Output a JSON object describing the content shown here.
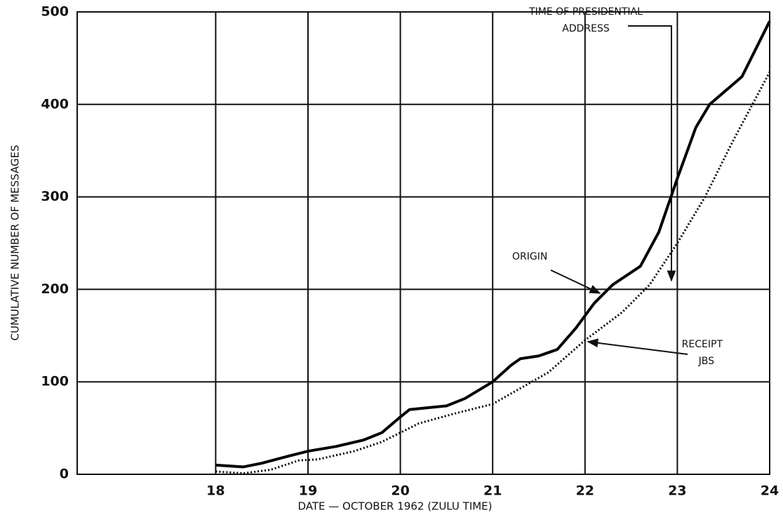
{
  "chart_data": {
    "type": "line",
    "x_label": "DATE — OCTOBER 1962 (ZULU TIME)",
    "y_label": "CUMULATIVE NUMBER OF MESSAGES",
    "xlim": [
      16.5,
      24
    ],
    "xticks": [
      18,
      19,
      20,
      21,
      22,
      23,
      24
    ],
    "ylim": [
      0,
      500
    ],
    "yticks": [
      0,
      100,
      200,
      300,
      400,
      500
    ],
    "grid": true,
    "series": [
      {
        "name": "ORIGIN",
        "color": "#000000",
        "style": "solid",
        "x": [
          18,
          18.3,
          18.5,
          18.8,
          19,
          19.3,
          19.6,
          19.8,
          20,
          20.1,
          20.5,
          20.7,
          21,
          21.2,
          21.3,
          21.5,
          21.7,
          21.9,
          22.1,
          22.3,
          22.6,
          22.8,
          23,
          23.2,
          23.35,
          23.7,
          24
        ],
        "values": [
          10,
          8,
          12,
          20,
          25,
          30,
          37,
          45,
          62,
          70,
          74,
          82,
          100,
          118,
          125,
          128,
          135,
          158,
          185,
          205,
          225,
          262,
          320,
          375,
          400,
          430,
          490
        ]
      },
      {
        "name": "RECEIPT JBS",
        "color": "#000000",
        "style": "dotted",
        "x": [
          18,
          18.3,
          18.6,
          18.9,
          19.1,
          19.5,
          19.8,
          20,
          20.2,
          20.6,
          21,
          21.3,
          21.6,
          22,
          22.4,
          22.7,
          23,
          23.3,
          23.6,
          24
        ],
        "values": [
          3,
          1,
          5,
          15,
          16,
          25,
          35,
          45,
          55,
          66,
          76,
          93,
          110,
          145,
          175,
          205,
          250,
          300,
          360,
          435
        ]
      }
    ],
    "annotations": [
      {
        "lines": [
          "TIME OF PRESIDENTIAL",
          "ADDRESS"
        ]
      },
      {
        "lines": [
          "ORIGIN"
        ]
      },
      {
        "lines": [
          "RECEIPT",
          "JBS"
        ]
      }
    ]
  }
}
